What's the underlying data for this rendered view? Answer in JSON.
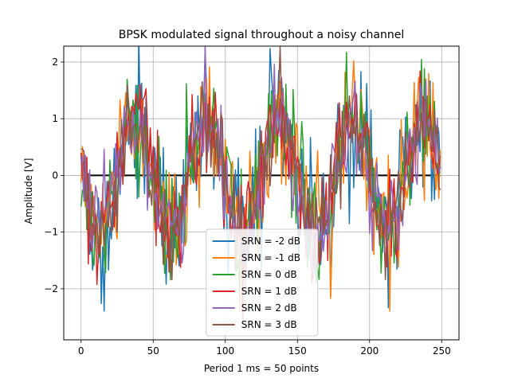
{
  "chart_data": {
    "type": "line",
    "title": "BPSK modulated signal throughout a noisy channel",
    "xlabel": "Period 1 ms = 50 points",
    "ylabel": "Amplitude [V]",
    "xlim": [
      -12,
      262
    ],
    "ylim": [
      -2.9,
      2.28
    ],
    "xticks": [
      0,
      50,
      100,
      150,
      200,
      250
    ],
    "yticks": [
      -2,
      -1,
      0,
      1,
      2
    ],
    "grid": true,
    "legend_position": "lower-center",
    "baseline": {
      "value": 0,
      "x_range": [
        0,
        249
      ],
      "color": "#000000"
    },
    "samples": 250,
    "period_points": 50,
    "series": [
      {
        "name": "SRN = -2 dB",
        "snr_db": -2,
        "color": "#1f77b4"
      },
      {
        "name": "SRN = -1 dB",
        "snr_db": -1,
        "color": "#ff7f0e"
      },
      {
        "name": "SRN = 0 dB",
        "snr_db": 0,
        "color": "#2ca02c"
      },
      {
        "name": "SRN = 1 dB",
        "snr_db": 1,
        "color": "#d62728"
      },
      {
        "name": "SRN = 2 dB",
        "snr_db": 2,
        "color": "#9467bd"
      },
      {
        "name": "SRN = 3 dB",
        "snr_db": 3,
        "color": "#8c564b"
      }
    ]
  }
}
